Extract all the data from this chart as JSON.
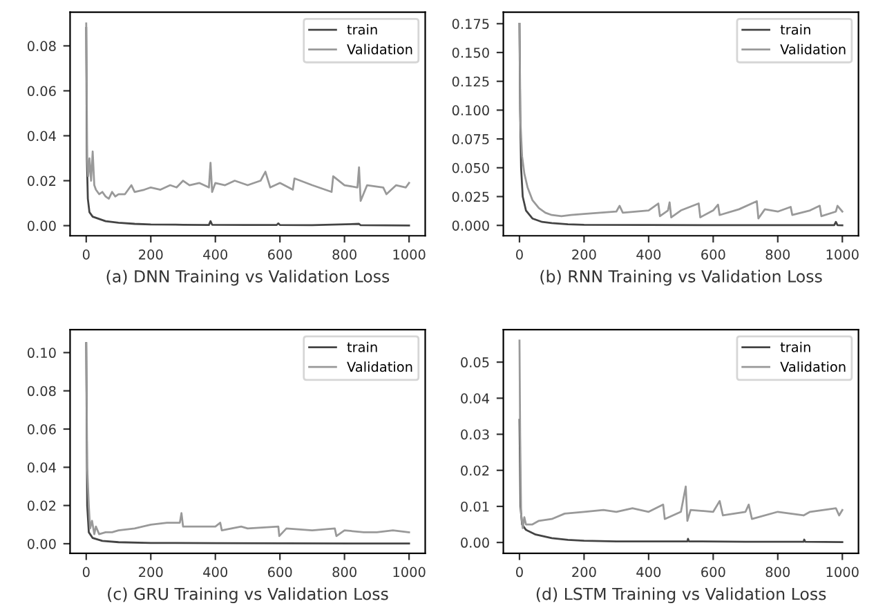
{
  "chart_data": [
    {
      "type": "line",
      "xlabel": "(a) DNN Training vs Validation Loss",
      "xlim": [
        -50,
        1050
      ],
      "xticks": [
        0,
        200,
        400,
        600,
        800,
        1000
      ],
      "ylim": [
        -0.0045,
        0.095
      ],
      "yticks": [
        {
          "value": 0,
          "label": "0.00"
        },
        {
          "value": 0.02,
          "label": "0.02"
        },
        {
          "value": 0.04,
          "label": "0.04"
        },
        {
          "value": 0.06,
          "label": "0.06"
        },
        {
          "value": 0.08,
          "label": "0.08"
        }
      ],
      "legend": "top right",
      "grid": false,
      "series": [
        {
          "name": "train",
          "color": "#444444",
          "x": [
            0,
            2,
            5,
            10,
            20,
            40,
            60,
            100,
            150,
            200,
            300,
            380,
            385,
            390,
            500,
            590,
            595,
            600,
            700,
            845,
            850,
            1000
          ],
          "values": [
            0.088,
            0.03,
            0.012,
            0.006,
            0.004,
            0.003,
            0.002,
            0.0013,
            0.0008,
            0.0005,
            0.0004,
            0.0003,
            0.002,
            0.0004,
            0.0003,
            0.0003,
            0.001,
            0.0003,
            0.0002,
            0.0008,
            0.0002,
            0.0001
          ]
        },
        {
          "name": "Validation",
          "color": "#999999",
          "x": [
            0,
            3,
            6,
            10,
            15,
            20,
            25,
            30,
            40,
            50,
            60,
            70,
            80,
            90,
            100,
            120,
            140,
            150,
            180,
            200,
            230,
            260,
            280,
            300,
            320,
            350,
            380,
            385,
            390,
            400,
            430,
            460,
            500,
            540,
            555,
            570,
            600,
            640,
            645,
            700,
            760,
            765,
            800,
            840,
            845,
            850,
            870,
            920,
            930,
            960,
            990,
            1000
          ],
          "values": [
            0.09,
            0.03,
            0.022,
            0.03,
            0.02,
            0.033,
            0.018,
            0.016,
            0.014,
            0.015,
            0.013,
            0.012,
            0.015,
            0.013,
            0.014,
            0.014,
            0.018,
            0.015,
            0.016,
            0.017,
            0.016,
            0.018,
            0.017,
            0.02,
            0.018,
            0.019,
            0.017,
            0.028,
            0.015,
            0.019,
            0.018,
            0.02,
            0.018,
            0.02,
            0.024,
            0.017,
            0.019,
            0.016,
            0.021,
            0.018,
            0.015,
            0.022,
            0.018,
            0.017,
            0.026,
            0.011,
            0.018,
            0.017,
            0.014,
            0.018,
            0.017,
            0.019
          ]
        }
      ]
    },
    {
      "type": "line",
      "xlabel": "(b) RNN Training vs Validation Loss",
      "xlim": [
        -50,
        1050
      ],
      "xticks": [
        0,
        200,
        400,
        600,
        800,
        1000
      ],
      "ylim": [
        -0.009,
        0.185
      ],
      "yticks": [
        {
          "value": 0,
          "label": "0.000"
        },
        {
          "value": 0.025,
          "label": "0.025"
        },
        {
          "value": 0.05,
          "label": "0.050"
        },
        {
          "value": 0.075,
          "label": "0.075"
        },
        {
          "value": 0.1,
          "label": "0.100"
        },
        {
          "value": 0.125,
          "label": "0.125"
        },
        {
          "value": 0.15,
          "label": "0.150"
        },
        {
          "value": 0.175,
          "label": "0.175"
        }
      ],
      "legend": "top right",
      "grid": false,
      "series": [
        {
          "name": "train",
          "color": "#444444",
          "x": [
            0,
            2,
            5,
            10,
            20,
            40,
            70,
            100,
            150,
            200,
            400,
            700,
            975,
            980,
            985,
            1000
          ],
          "values": [
            0.175,
            0.1,
            0.05,
            0.025,
            0.013,
            0.006,
            0.003,
            0.002,
            0.001,
            0.0005,
            0.0003,
            0.0002,
            0.0002,
            0.003,
            0.0002,
            0.0001
          ]
        },
        {
          "name": "Validation",
          "color": "#999999",
          "x": [
            0,
            3,
            8,
            15,
            25,
            40,
            60,
            80,
            100,
            130,
            160,
            200,
            250,
            300,
            310,
            320,
            400,
            430,
            435,
            460,
            465,
            470,
            500,
            555,
            560,
            600,
            615,
            620,
            680,
            735,
            740,
            760,
            800,
            840,
            845,
            900,
            930,
            935,
            980,
            985,
            1000
          ],
          "values": [
            0.175,
            0.09,
            0.06,
            0.045,
            0.033,
            0.022,
            0.015,
            0.011,
            0.009,
            0.008,
            0.009,
            0.01,
            0.011,
            0.012,
            0.017,
            0.011,
            0.013,
            0.019,
            0.008,
            0.013,
            0.02,
            0.007,
            0.013,
            0.019,
            0.007,
            0.013,
            0.018,
            0.009,
            0.014,
            0.021,
            0.006,
            0.014,
            0.012,
            0.016,
            0.009,
            0.013,
            0.017,
            0.008,
            0.012,
            0.017,
            0.012
          ]
        }
      ]
    },
    {
      "type": "line",
      "xlabel": "(c) GRU Training vs Validation Loss",
      "xlim": [
        -50,
        1050
      ],
      "xticks": [
        0,
        200,
        400,
        600,
        800,
        1000
      ],
      "ylim": [
        -0.005,
        0.112
      ],
      "yticks": [
        {
          "value": 0,
          "label": "0.00"
        },
        {
          "value": 0.02,
          "label": "0.02"
        },
        {
          "value": 0.04,
          "label": "0.04"
        },
        {
          "value": 0.06,
          "label": "0.06"
        },
        {
          "value": 0.08,
          "label": "0.08"
        },
        {
          "value": 0.1,
          "label": "0.10"
        }
      ],
      "legend": "top right",
      "grid": false,
      "series": [
        {
          "name": "train",
          "color": "#444444",
          "x": [
            0,
            3,
            8,
            20,
            50,
            100,
            200,
            400,
            1000
          ],
          "values": [
            0.105,
            0.02,
            0.006,
            0.003,
            0.0015,
            0.0008,
            0.0004,
            0.0003,
            0.0001
          ]
        },
        {
          "name": "Validation",
          "color": "#999999",
          "x": [
            0,
            3,
            8,
            12,
            18,
            25,
            30,
            40,
            60,
            80,
            100,
            150,
            200,
            250,
            290,
            295,
            300,
            340,
            400,
            415,
            420,
            480,
            500,
            595,
            598,
            620,
            700,
            770,
            775,
            800,
            860,
            900,
            950,
            1000
          ],
          "values": [
            0.105,
            0.04,
            0.02,
            0.008,
            0.012,
            0.005,
            0.009,
            0.005,
            0.006,
            0.006,
            0.007,
            0.008,
            0.01,
            0.011,
            0.011,
            0.016,
            0.009,
            0.009,
            0.009,
            0.011,
            0.007,
            0.009,
            0.008,
            0.009,
            0.004,
            0.008,
            0.007,
            0.008,
            0.004,
            0.007,
            0.006,
            0.006,
            0.007,
            0.006
          ]
        }
      ]
    },
    {
      "type": "line",
      "xlabel": "(d) LSTM Training vs Validation Loss",
      "xlim": [
        -50,
        1050
      ],
      "xticks": [
        0,
        200,
        400,
        600,
        800,
        1000
      ],
      "ylim": [
        -0.003,
        0.059
      ],
      "yticks": [
        {
          "value": 0,
          "label": "0.00"
        },
        {
          "value": 0.01,
          "label": "0.01"
        },
        {
          "value": 0.02,
          "label": "0.02"
        },
        {
          "value": 0.03,
          "label": "0.03"
        },
        {
          "value": 0.04,
          "label": "0.04"
        },
        {
          "value": 0.05,
          "label": "0.05"
        }
      ],
      "legend": "top right",
      "grid": false,
      "series": [
        {
          "name": "train",
          "color": "#444444",
          "x": [
            0,
            3,
            8,
            20,
            50,
            100,
            150,
            200,
            300,
            520,
            522,
            525,
            700,
            880,
            882,
            885,
            1000
          ],
          "values": [
            0.034,
            0.01,
            0.005,
            0.0035,
            0.0022,
            0.0012,
            0.0007,
            0.0005,
            0.0003,
            0.0003,
            0.001,
            0.0003,
            0.0002,
            0.0002,
            0.0008,
            0.0002,
            0.0001
          ]
        },
        {
          "name": "Validation",
          "color": "#999999",
          "x": [
            0,
            2,
            5,
            10,
            15,
            20,
            40,
            60,
            100,
            140,
            200,
            260,
            300,
            350,
            400,
            445,
            450,
            500,
            515,
            520,
            530,
            600,
            620,
            630,
            700,
            710,
            720,
            800,
            880,
            900,
            980,
            990,
            1000
          ],
          "values": [
            0.056,
            0.03,
            0.008,
            0.004,
            0.007,
            0.005,
            0.005,
            0.006,
            0.0065,
            0.008,
            0.0085,
            0.009,
            0.0085,
            0.0095,
            0.0085,
            0.0105,
            0.0065,
            0.0085,
            0.0155,
            0.006,
            0.009,
            0.0085,
            0.0115,
            0.0075,
            0.0085,
            0.0105,
            0.0065,
            0.0085,
            0.0075,
            0.0085,
            0.0095,
            0.0075,
            0.009
          ]
        }
      ]
    }
  ]
}
